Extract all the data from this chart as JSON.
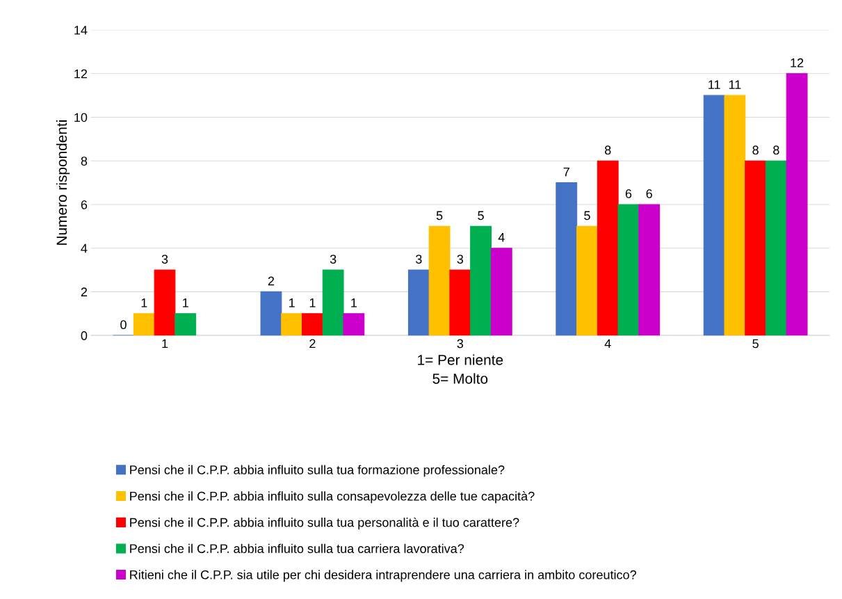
{
  "chart_data": {
    "type": "bar",
    "xlabel": "1= Per niente\n5= Molto",
    "ylabel": "Numero rispondenti",
    "categories": [
      "1",
      "2",
      "3",
      "4",
      "5"
    ],
    "series": [
      {
        "name": "Pensi che il C.P.P. abbia influito sulla tua formazione professionale?",
        "color": "#4472c4",
        "values": [
          0,
          2,
          3,
          7,
          11
        ]
      },
      {
        "name": "Pensi che il C.P.P. abbia influito sulla consapevolezza delle tue capacità?",
        "color": "#ffc000",
        "values": [
          1,
          1,
          5,
          5,
          11
        ]
      },
      {
        "name": "Pensi che il C.P.P. abbia influito sulla tua personalità e il tuo carattere?",
        "color": "#ff0000",
        "values": [
          3,
          1,
          3,
          8,
          8
        ]
      },
      {
        "name": "Pensi che il C.P.P. abbia influito sulla tua carriera lavorativa?",
        "color": "#00b050",
        "values": [
          1,
          3,
          5,
          6,
          8
        ]
      },
      {
        "name": "Ritieni che il C.P.P. sia utile per chi desidera intraprendere una carriera in ambito coreutico?",
        "color": "#cc00cc",
        "values": [
          null,
          1,
          4,
          6,
          12
        ]
      }
    ],
    "ylim": [
      0,
      14
    ],
    "yticks": [
      0,
      2,
      4,
      6,
      8,
      10,
      12,
      14
    ],
    "grid": "y",
    "legend": "bottom",
    "data_labels": true
  }
}
